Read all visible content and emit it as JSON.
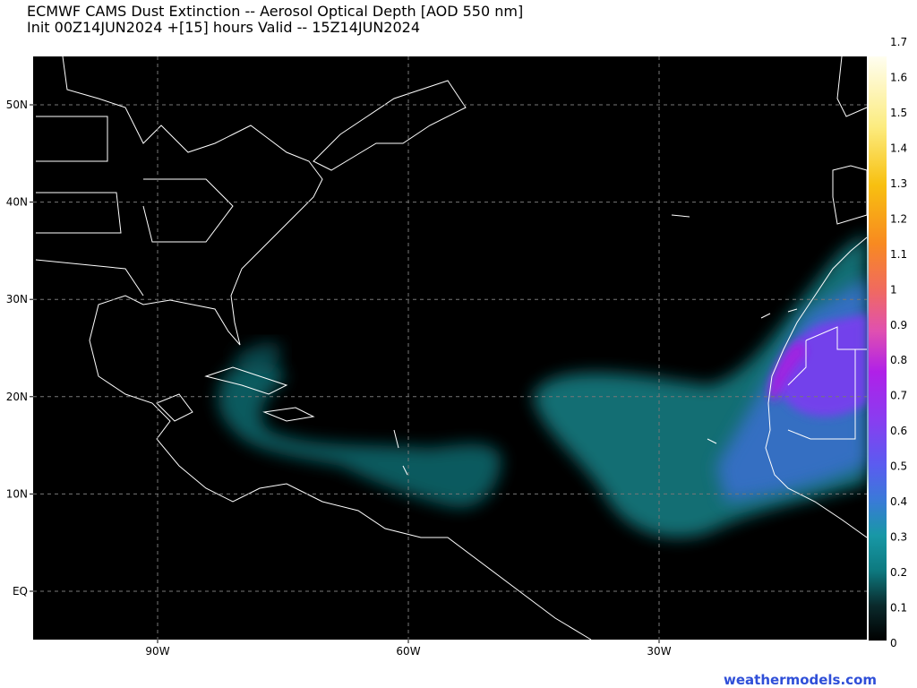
{
  "header": {
    "title": "ECMWF CAMS Dust Extinction -- Aerosol Optical Depth [AOD 550 nm]",
    "subtitle": "Init 00Z14JUN2024 +[15] hours Valid -- 15Z14JUN2024"
  },
  "map": {
    "lat_labels": [
      "50N",
      "40N",
      "30N",
      "20N",
      "10N",
      "EQ"
    ],
    "lon_labels": [
      "90W",
      "60W",
      "30W"
    ]
  },
  "colorbar": {
    "ticks": [
      0,
      0.1,
      0.2,
      0.3,
      0.4,
      0.5,
      0.6,
      0.7,
      0.8,
      0.9,
      1,
      1.1,
      1.2,
      1.3,
      1.4,
      1.5,
      1.6,
      1.7
    ]
  },
  "footer": {
    "credit": "weathermodels.com"
  }
}
